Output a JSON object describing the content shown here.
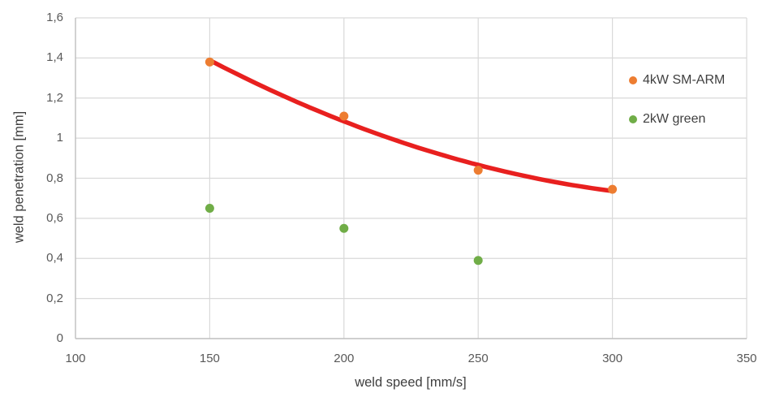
{
  "chart_data": {
    "type": "scatter",
    "title": "",
    "xlabel": "weld speed [mm/s]",
    "ylabel": "weld penetration [mm]",
    "xlim": [
      100,
      350
    ],
    "ylim": [
      0,
      1.6
    ],
    "xticks": [
      100,
      150,
      200,
      250,
      300,
      350
    ],
    "xtick_labels": [
      "100",
      "150",
      "200",
      "250",
      "300",
      "350"
    ],
    "yticks": [
      0,
      0.2,
      0.4,
      0.6,
      0.8,
      1,
      1.2,
      1.4,
      1.6
    ],
    "ytick_labels": [
      "0",
      "0,2",
      "0,4",
      "0,6",
      "0,8",
      "1",
      "1,2",
      "1,4",
      "1,6"
    ],
    "grid": true,
    "legend_position": "inside-top-right",
    "series": [
      {
        "name": "4kW SM-ARM",
        "color": "#ED7D31",
        "marker": "circle",
        "points": [
          {
            "x": 150,
            "y": 1.38
          },
          {
            "x": 200,
            "y": 1.11
          },
          {
            "x": 250,
            "y": 0.84
          },
          {
            "x": 300,
            "y": 0.745
          }
        ],
        "trendline": {
          "type": "polynomial",
          "order": 2,
          "color": "#E8201F",
          "width": 5.5
        }
      },
      {
        "name": "2kW green",
        "color": "#70AD47",
        "marker": "circle",
        "points": [
          {
            "x": 150,
            "y": 0.65
          },
          {
            "x": 200,
            "y": 0.55
          },
          {
            "x": 250,
            "y": 0.39
          }
        ]
      }
    ],
    "colors": {
      "gridline": "#D9D9D9",
      "axis_line": "#BFBFBF",
      "tick_text": "#595959",
      "title_text": "#404040"
    }
  }
}
